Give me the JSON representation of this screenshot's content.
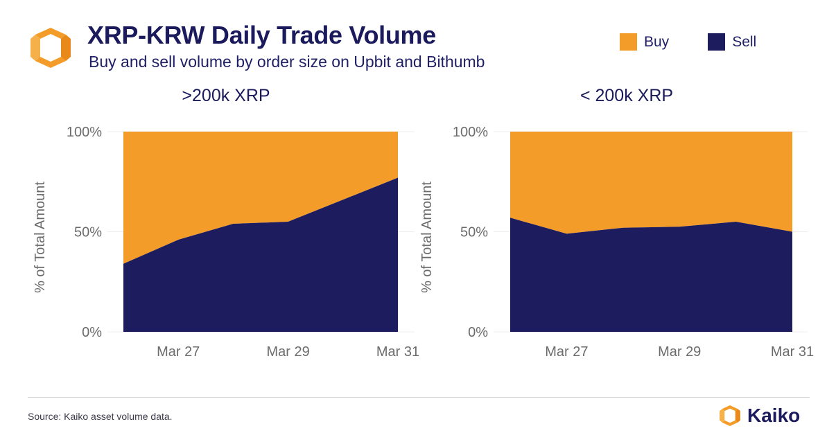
{
  "header": {
    "title": "XRP-KRW Daily Trade Volume",
    "subtitle": "Buy and sell volume by order size on Upbit and Bithumb"
  },
  "legend": [
    {
      "label": "Buy",
      "color": "#f39c2a"
    },
    {
      "label": "Sell",
      "color": "#1c1c5e"
    }
  ],
  "colors": {
    "buy": "#f39c2a",
    "sell": "#1c1c5e",
    "text": "#1a1a5c"
  },
  "icons": {
    "header_logo": "kaiko-logo-icon",
    "brand_logo": "kaiko-logo-icon"
  },
  "footer": {
    "source": "Source: Kaiko asset volume data.",
    "brand": "Kaiko"
  },
  "chart_data": [
    {
      "type": "area",
      "title": ">200k XRP",
      "ylabel": "% of Total Amount",
      "xlabel": "",
      "stacked": true,
      "percent": true,
      "ylim": [
        0,
        100
      ],
      "yticks": [
        0,
        50,
        100
      ],
      "ytick_labels": [
        "0%",
        "50%",
        "100%"
      ],
      "x": [
        "Mar 26",
        "Mar 27",
        "Mar 28",
        "Mar 29",
        "Mar 30",
        "Mar 31"
      ],
      "xtick_labels": [
        "Mar 27",
        "Mar 29",
        "Mar 31"
      ],
      "series": [
        {
          "name": "Sell",
          "values": [
            34,
            46,
            54,
            55,
            66,
            77
          ]
        },
        {
          "name": "Buy",
          "values": [
            66,
            54,
            46,
            45,
            34,
            23
          ]
        }
      ],
      "grid": true
    },
    {
      "type": "area",
      "title": "< 200k XRP",
      "ylabel": "% of Total Amount",
      "xlabel": "",
      "stacked": true,
      "percent": true,
      "ylim": [
        0,
        100
      ],
      "yticks": [
        0,
        50,
        100
      ],
      "ytick_labels": [
        "0%",
        "50%",
        "100%"
      ],
      "x": [
        "Mar 26",
        "Mar 27",
        "Mar 28",
        "Mar 29",
        "Mar 30",
        "Mar 31"
      ],
      "xtick_labels": [
        "Mar 27",
        "Mar 29",
        "Mar 31"
      ],
      "series": [
        {
          "name": "Sell",
          "values": [
            57,
            49,
            52,
            52.5,
            55,
            50
          ]
        },
        {
          "name": "Buy",
          "values": [
            43,
            51,
            48,
            47.5,
            45,
            50
          ]
        }
      ],
      "grid": true
    }
  ]
}
